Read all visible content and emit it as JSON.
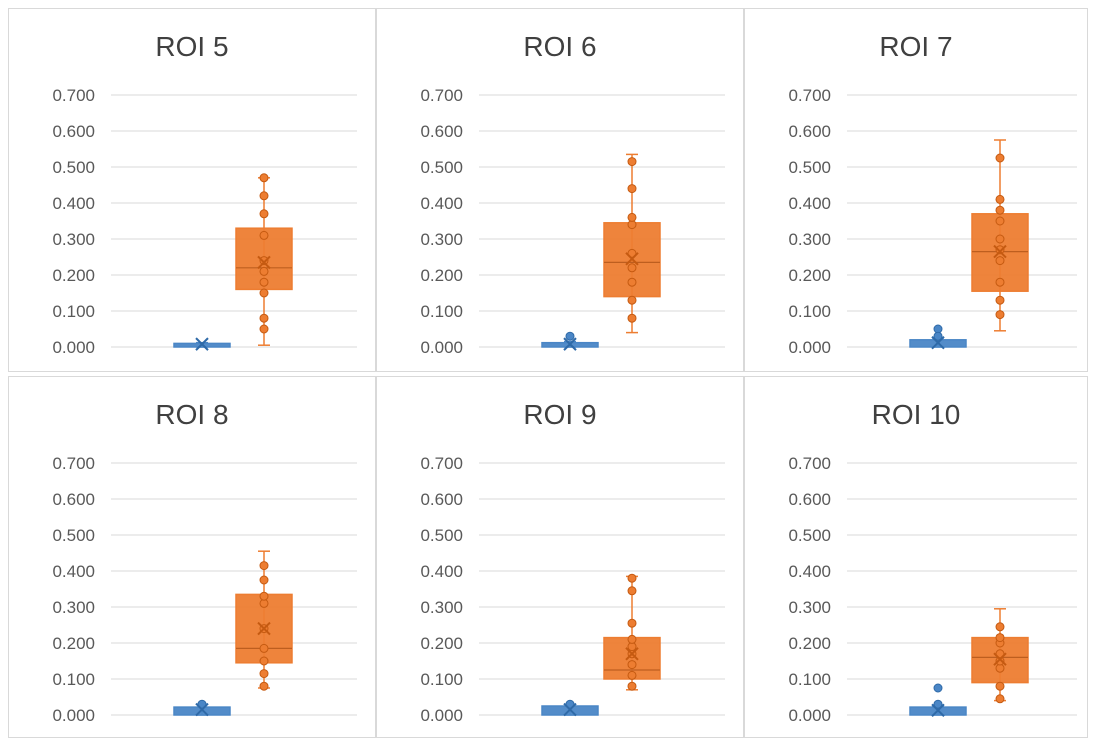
{
  "colors": {
    "blue": "#4a86c6",
    "orange": "#ed7d31",
    "grid": "#d9d9d9",
    "axis_text": "#595959"
  },
  "chart_data": [
    {
      "type": "box",
      "title": "ROI 5",
      "ylim": [
        0,
        0.7
      ],
      "yticks": [
        "0.000",
        "0.100",
        "0.200",
        "0.300",
        "0.400",
        "0.500",
        "0.600",
        "0.700"
      ],
      "grid": true,
      "series": [
        {
          "color": "blue",
          "min": 0.0,
          "q1": 0.0,
          "median": 0.005,
          "q3": 0.01,
          "max": 0.012,
          "mean": 0.008,
          "points": []
        },
        {
          "color": "orange",
          "min": 0.005,
          "q1": 0.16,
          "median": 0.22,
          "q3": 0.33,
          "max": 0.47,
          "mean": 0.235,
          "points": [
            0.05,
            0.08,
            0.15,
            0.18,
            0.21,
            0.24,
            0.31,
            0.37,
            0.42,
            0.47
          ]
        }
      ]
    },
    {
      "type": "box",
      "title": "ROI 6",
      "ylim": [
        0,
        0.7
      ],
      "yticks": [
        "0.000",
        "0.100",
        "0.200",
        "0.300",
        "0.400",
        "0.500",
        "0.600",
        "0.700"
      ],
      "grid": true,
      "series": [
        {
          "color": "blue",
          "min": 0.0,
          "q1": 0.0,
          "median": 0.005,
          "q3": 0.012,
          "max": 0.015,
          "mean": 0.008,
          "points": [
            0.03
          ]
        },
        {
          "color": "orange",
          "min": 0.04,
          "q1": 0.14,
          "median": 0.235,
          "q3": 0.345,
          "max": 0.535,
          "mean": 0.245,
          "points": [
            0.08,
            0.13,
            0.18,
            0.22,
            0.26,
            0.34,
            0.36,
            0.44,
            0.515
          ]
        }
      ]
    },
    {
      "type": "box",
      "title": "ROI 7",
      "ylim": [
        0,
        0.7
      ],
      "yticks": [
        "0.000",
        "0.100",
        "0.200",
        "0.300",
        "0.400",
        "0.500",
        "0.600",
        "0.700"
      ],
      "grid": true,
      "series": [
        {
          "color": "blue",
          "min": 0.0,
          "q1": 0.0,
          "median": 0.008,
          "q3": 0.02,
          "max": 0.025,
          "mean": 0.012,
          "points": [
            0.05,
            0.03
          ]
        },
        {
          "color": "orange",
          "min": 0.045,
          "q1": 0.155,
          "median": 0.265,
          "q3": 0.37,
          "max": 0.575,
          "mean": 0.265,
          "points": [
            0.09,
            0.13,
            0.18,
            0.24,
            0.27,
            0.3,
            0.35,
            0.38,
            0.41,
            0.525
          ]
        }
      ]
    },
    {
      "type": "box",
      "title": "ROI 8",
      "ylim": [
        0,
        0.7
      ],
      "yticks": [
        "0.000",
        "0.100",
        "0.200",
        "0.300",
        "0.400",
        "0.500",
        "0.600",
        "0.700"
      ],
      "grid": true,
      "series": [
        {
          "color": "blue",
          "min": 0.0,
          "q1": 0.0,
          "median": 0.01,
          "q3": 0.022,
          "max": 0.03,
          "mean": 0.015,
          "points": [
            0.03
          ]
        },
        {
          "color": "orange",
          "min": 0.075,
          "q1": 0.145,
          "median": 0.185,
          "q3": 0.335,
          "max": 0.455,
          "mean": 0.24,
          "points": [
            0.08,
            0.115,
            0.15,
            0.185,
            0.24,
            0.31,
            0.33,
            0.375,
            0.415
          ]
        }
      ]
    },
    {
      "type": "box",
      "title": "ROI 9",
      "ylim": [
        0,
        0.7
      ],
      "yticks": [
        "0.000",
        "0.100",
        "0.200",
        "0.300",
        "0.400",
        "0.500",
        "0.600",
        "0.700"
      ],
      "grid": true,
      "series": [
        {
          "color": "blue",
          "min": 0.0,
          "q1": 0.0,
          "median": 0.01,
          "q3": 0.025,
          "max": 0.03,
          "mean": 0.015,
          "points": [
            0.03
          ]
        },
        {
          "color": "orange",
          "min": 0.07,
          "q1": 0.1,
          "median": 0.125,
          "q3": 0.215,
          "max": 0.385,
          "mean": 0.17,
          "points": [
            0.08,
            0.11,
            0.14,
            0.17,
            0.19,
            0.21,
            0.255,
            0.345,
            0.38
          ]
        }
      ]
    },
    {
      "type": "box",
      "title": "ROI 10",
      "ylim": [
        0,
        0.7
      ],
      "yticks": [
        "0.000",
        "0.100",
        "0.200",
        "0.300",
        "0.400",
        "0.500",
        "0.600",
        "0.700"
      ],
      "grid": true,
      "series": [
        {
          "color": "blue",
          "min": 0.0,
          "q1": 0.0,
          "median": 0.008,
          "q3": 0.022,
          "max": 0.025,
          "mean": 0.013,
          "points": [
            0.075,
            0.03
          ]
        },
        {
          "color": "orange",
          "min": 0.04,
          "q1": 0.09,
          "median": 0.16,
          "q3": 0.215,
          "max": 0.295,
          "mean": 0.155,
          "points": [
            0.045,
            0.08,
            0.13,
            0.15,
            0.17,
            0.2,
            0.215,
            0.245
          ]
        }
      ]
    }
  ]
}
